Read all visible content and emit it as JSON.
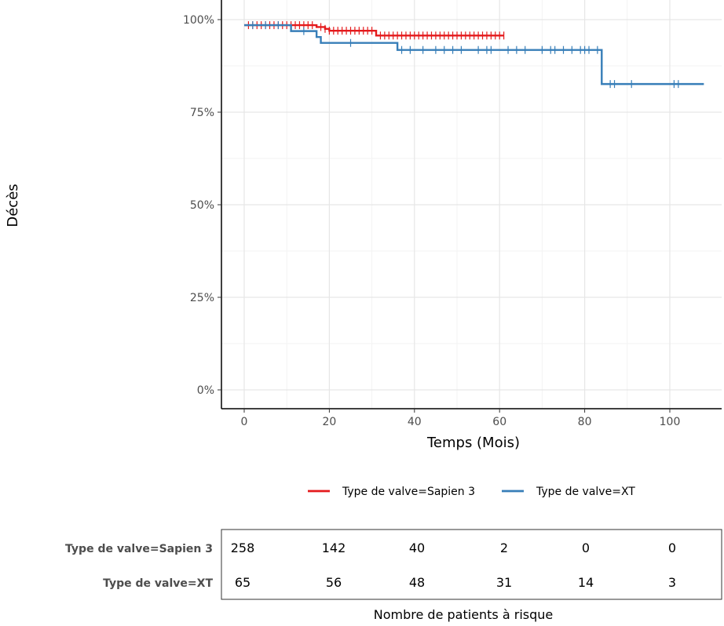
{
  "chart_data": {
    "type": "line",
    "subtype": "kaplan-meier-step",
    "title": "",
    "xlabel": "Temps (Mois)",
    "ylabel": "Décès",
    "xlim": [
      0,
      108
    ],
    "ylim": [
      0,
      1
    ],
    "x_ticks": [
      0,
      20,
      40,
      60,
      80,
      100
    ],
    "y_ticks": [
      {
        "value": 0,
        "label": "0%"
      },
      {
        "value": 0.25,
        "label": "25%"
      },
      {
        "value": 0.5,
        "label": "50%"
      },
      {
        "value": 0.75,
        "label": "75%"
      },
      {
        "value": 1,
        "label": "100%"
      }
    ],
    "grid": true,
    "legend_position": "bottom",
    "series": [
      {
        "name": "Type de valve=Sapien 3",
        "color": "#e41a1c",
        "steps": [
          [
            0,
            0.985
          ],
          [
            17,
            0.98
          ],
          [
            19,
            0.975
          ],
          [
            20,
            0.97
          ],
          [
            31,
            0.957
          ],
          [
            61,
            0.957
          ]
        ],
        "censored": [
          1,
          2,
          3,
          4,
          5,
          6,
          7,
          8,
          9,
          10,
          11,
          12,
          13,
          14,
          15,
          16,
          18,
          19,
          20,
          21,
          22,
          23,
          24,
          25,
          26,
          27,
          28,
          29,
          30,
          32,
          33,
          34,
          35,
          36,
          37,
          38,
          39,
          40,
          41,
          42,
          43,
          44,
          45,
          46,
          47,
          48,
          49,
          50,
          51,
          52,
          53,
          54,
          55,
          56,
          57,
          58,
          59,
          60,
          61
        ]
      },
      {
        "name": "Type de valve=XT",
        "color": "#377eb8",
        "steps": [
          [
            0,
            0.985
          ],
          [
            11,
            0.969
          ],
          [
            17,
            0.953
          ],
          [
            18,
            0.937
          ],
          [
            36,
            0.918
          ],
          [
            84,
            0.826
          ],
          [
            108,
            0.826
          ]
        ],
        "censored": [
          2,
          5,
          8,
          14,
          25,
          37,
          39,
          42,
          45,
          47,
          49,
          51,
          55,
          57,
          58,
          62,
          64,
          66,
          70,
          72,
          73,
          75,
          77,
          79,
          80,
          81,
          83,
          86,
          87,
          91,
          101,
          102
        ]
      }
    ],
    "risk_table": {
      "title": "Nombre de patients à risque",
      "times": [
        0,
        20,
        40,
        60,
        80,
        100
      ],
      "rows": [
        {
          "label": "Type de valve=Sapien 3",
          "values": [
            "258",
            "142",
            "40",
            "2",
            "0",
            "0"
          ]
        },
        {
          "label": "Type de valve=XT",
          "values": [
            "65",
            "56",
            "48",
            "31",
            "14",
            "3"
          ]
        }
      ]
    }
  }
}
